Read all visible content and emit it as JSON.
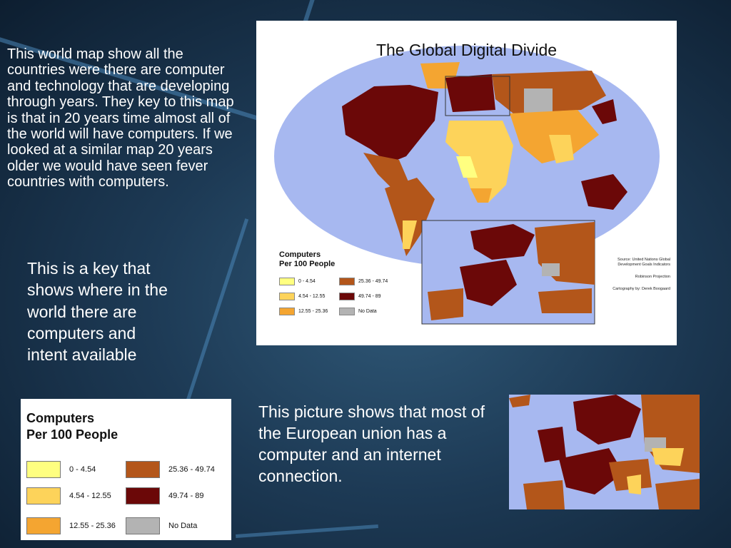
{
  "slide": {
    "paragraph_map": "This world map show all the countries were there are computer and technology that are developing through years. They key to this map is that in 20 years time almost all of the world will have computers. If we looked at a similar map 20 years older we would have seen fever countries with computers.",
    "paragraph_key": "This is a key that shows where in the world there are computers and intent available",
    "paragraph_europe": "This picture shows that most of the European union has a computer and an internet connection."
  },
  "map": {
    "title": "The Global Digital Divide",
    "legend_title_line1": "Computers",
    "legend_title_line2": "Per 100 People",
    "credits": {
      "source": "Source: United Nations Global Development Goals Indicators",
      "projection": "Robinson Projection",
      "cartography": "Cartography by: Derek Boogaard"
    }
  },
  "legend": {
    "title_line1": "Computers",
    "title_line2": "Per 100 People",
    "items": [
      {
        "label": "0 - 4.54",
        "color": "#ffff80"
      },
      {
        "label": "4.54 - 12.55",
        "color": "#fdd35a"
      },
      {
        "label": "12.55 - 25.36",
        "color": "#f4a531"
      },
      {
        "label": "25.36 - 49.74",
        "color": "#b3561a"
      },
      {
        "label": "49.74 - 89",
        "color": "#6b0808"
      },
      {
        "label": "No Data",
        "color": "#b3b3b3"
      }
    ]
  },
  "colors": {
    "background": "#1d3a55",
    "ocean": "#a7b8f0",
    "accent_stripe": "#4a86b8"
  }
}
